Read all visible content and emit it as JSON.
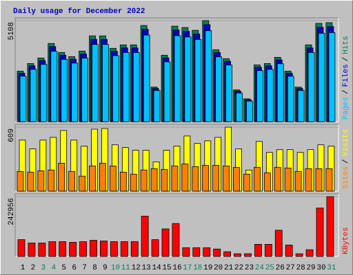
{
  "chart_data": [
    {
      "type": "bar",
      "title": "Daily usage for December 2022",
      "title_color": "#0000c0",
      "ylim": [
        0,
        5108
      ],
      "yticks": [
        5108
      ],
      "legend_separator": "/",
      "series": [
        {
          "name": "Hits",
          "color": "#00805c",
          "values": [
            2554,
            2939,
            3219,
            3953,
            3499,
            3289,
            3569,
            4338,
            4338,
            3708,
            3883,
            3883,
            4863,
            1749,
            3359,
            4828,
            4758,
            4618,
            5108,
            3639,
            3184,
            1609,
            1155,
            2869,
            2939,
            3254,
            2554,
            1749,
            3883,
            4968,
            5003
          ]
        },
        {
          "name": "Files",
          "color": "#0000c0",
          "values": [
            2452,
            2821,
            3090,
            3795,
            3359,
            3157,
            3426,
            4164,
            4164,
            3560,
            3728,
            3728,
            4668,
            1679,
            3225,
            4635,
            4568,
            4433,
            4904,
            3493,
            3057,
            1545,
            1109,
            2754,
            2821,
            3124,
            2452,
            1679,
            3728,
            4769,
            4803
          ]
        },
        {
          "name": "Pages",
          "color": "#00c0ff",
          "values": [
            2299,
            2645,
            2897,
            3558,
            3149,
            2960,
            3212,
            3904,
            3904,
            3337,
            3495,
            3495,
            4377,
            1574,
            3023,
            4345,
            4282,
            4156,
            4597,
            3275,
            2866,
            1448,
            1040,
            2582,
            2645,
            2929,
            2299,
            1574,
            3495,
            4471,
            4503
          ]
        }
      ]
    },
    {
      "type": "bar",
      "ylim": [
        0,
        609
      ],
      "yticks": [
        609
      ],
      "legend_separator": "/",
      "series": [
        {
          "name": "Visits",
          "color": "#ffff00",
          "values": [
            486,
            402,
            486,
            512,
            577,
            486,
            428,
            590,
            596,
            441,
            415,
            389,
            389,
            279,
            389,
            428,
            525,
            454,
            479,
            512,
            609,
            402,
            201,
            473,
            369,
            395,
            395,
            369,
            395,
            441,
            428
          ]
        },
        {
          "name": "Sites",
          "color": "#ff8000",
          "values": [
            188,
            181,
            194,
            201,
            266,
            188,
            143,
            240,
            266,
            240,
            181,
            162,
            201,
            214,
            207,
            240,
            259,
            233,
            246,
            246,
            240,
            227,
            162,
            227,
            175,
            227,
            220,
            188,
            214,
            214,
            214
          ]
        }
      ]
    },
    {
      "type": "bar",
      "ylim": [
        0,
        242956
      ],
      "yticks": [
        242956
      ],
      "categories": [
        "1",
        "2",
        "3",
        "4",
        "5",
        "6",
        "7",
        "8",
        "9",
        "10",
        "11",
        "12",
        "13",
        "14",
        "15",
        "16",
        "17",
        "18",
        "19",
        "20",
        "21",
        "22",
        "23",
        "24",
        "25",
        "26",
        "27",
        "28",
        "29",
        "30",
        "31"
      ],
      "category_colors": [
        "#000000",
        "#000000",
        "#00805c",
        "#00805c",
        "#000000",
        "#000000",
        "#000000",
        "#000000",
        "#000000",
        "#00805c",
        "#00805c",
        "#000000",
        "#000000",
        "#000000",
        "#000000",
        "#000000",
        "#00805c",
        "#00805c",
        "#000000",
        "#000000",
        "#000000",
        "#000000",
        "#000000",
        "#00805c",
        "#00805c",
        "#000000",
        "#000000",
        "#000000",
        "#000000",
        "#000000",
        "#00805c"
      ],
      "series": [
        {
          "name": "KBytes",
          "color": "#ff0000",
          "values": [
            68250,
            54600,
            54600,
            60060,
            60060,
            57330,
            60060,
            65520,
            62790,
            60060,
            60060,
            60060,
            163800,
            68250,
            111930,
            133770,
            35490,
            35490,
            35490,
            30030,
            19110,
            10920,
            10920,
            49140,
            49140,
            106470,
            46410,
            10920,
            27300,
            196560,
            242956
          ]
        }
      ]
    }
  ]
}
